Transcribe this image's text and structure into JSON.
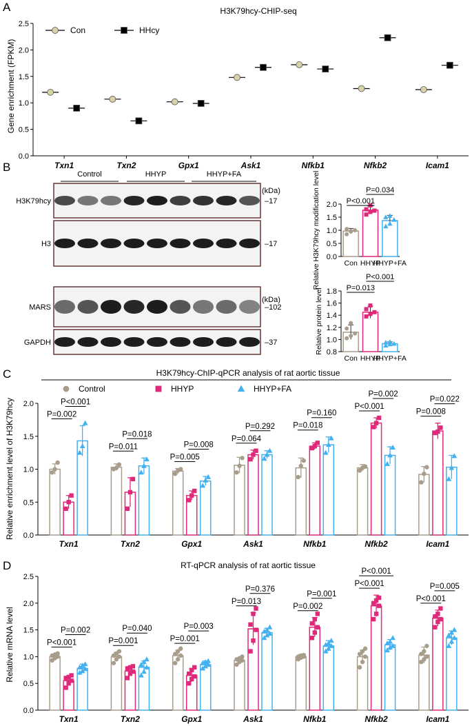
{
  "panels": {
    "A": {
      "letter": "A",
      "chart_data": {
        "type": "scatter",
        "title": "H3K79hcy-CHIP-seq",
        "ylabel": "Gene enrichment (FPKM)",
        "ylim": [
          0,
          2.5
        ],
        "yticks": [
          "0.0",
          "0.5",
          "1.0",
          "1.5",
          "2.0",
          "2.5"
        ],
        "categories": [
          "Txn1",
          "Txn2",
          "Gpx1",
          "Ask1",
          "Nfkb1",
          "Nfkb2",
          "Icam1"
        ],
        "series": [
          {
            "name": "Con",
            "color": "#d8d2a8",
            "marker": "circle",
            "values": [
              1.2,
              1.07,
              1.02,
              1.48,
              1.72,
              1.27,
              1.25
            ]
          },
          {
            "name": "HHcy",
            "color": "#000000",
            "marker": "square",
            "values": [
              0.9,
              0.66,
              0.99,
              1.67,
              1.64,
              2.23,
              1.71
            ]
          }
        ],
        "legend_position": "top-left"
      }
    },
    "B": {
      "letter": "B",
      "blot": {
        "groups": [
          "Control",
          "HHYP",
          "HHYP+FA"
        ],
        "rows": [
          {
            "label": "H3K79hcy",
            "marker": "–17"
          },
          {
            "label": "H3",
            "marker": "–17"
          },
          {
            "label": "MARS",
            "marker": "–102"
          },
          {
            "label": "GAPDH",
            "marker": "–37"
          }
        ],
        "kda": "(kDa)",
        "lane_intensity": [
          [
            0.75,
            0.55,
            0.55,
            0.9,
            0.95,
            0.8,
            0.85,
            0.9,
            0.7
          ],
          [
            0.95,
            0.95,
            0.95,
            0.95,
            0.95,
            0.95,
            0.95,
            0.95,
            0.95
          ],
          [
            0.6,
            0.7,
            0.95,
            0.9,
            0.95,
            0.7,
            0.55,
            0.6,
            0.5
          ],
          [
            0.95,
            0.95,
            0.95,
            0.95,
            0.95,
            0.95,
            0.95,
            0.95,
            0.95
          ]
        ]
      },
      "chart_top": {
        "type": "bar",
        "ylabel": "Relative H3K79hcy modification level",
        "ylim": [
          0,
          2.0
        ],
        "yticks": [
          "0.0",
          "0.5",
          "1.0",
          "1.5",
          "2.0"
        ],
        "categories": [
          "Con",
          "HHYP",
          "HHYP+FA"
        ],
        "values": [
          0.97,
          1.77,
          1.37
        ],
        "errors": [
          0.1,
          0.15,
          0.2
        ],
        "points": [
          [
            0.85,
            0.95,
            1.0,
            1.05,
            0.97
          ],
          [
            1.6,
            1.7,
            1.75,
            1.8,
            1.95
          ],
          [
            1.15,
            1.25,
            1.4,
            1.5,
            1.55
          ]
        ],
        "comparisons": [
          {
            "i": 0,
            "j": 1,
            "label": "P<0.001"
          },
          {
            "i": 1,
            "j": 2,
            "label": "P=0.034"
          }
        ]
      },
      "chart_bottom": {
        "type": "bar",
        "ylabel": "Relative protein level",
        "ylim": [
          0.8,
          1.8
        ],
        "yticks": [
          "0.8",
          "1.0",
          "1.2",
          "1.4",
          "1.6",
          "1.8"
        ],
        "categories": [
          "Con",
          "HHYP",
          "HHYP+FA"
        ],
        "values": [
          1.12,
          1.45,
          0.93
        ],
        "errors": [
          0.12,
          0.1,
          0.03
        ],
        "points": [
          [
            1.02,
            1.06,
            1.1,
            1.18,
            1.27
          ],
          [
            1.38,
            1.42,
            1.45,
            1.5,
            1.56
          ],
          [
            0.9,
            0.92,
            0.93,
            0.95,
            0.96
          ]
        ],
        "comparisons": [
          {
            "i": 0,
            "j": 1,
            "label": "P=0.013"
          },
          {
            "i": 1,
            "j": 2,
            "label": "P<0.001"
          }
        ]
      }
    },
    "C": {
      "letter": "C",
      "chart_data": {
        "type": "bar",
        "title": "H3K79hcy-ChIP-qPCR analysis of rat aortic tissue",
        "ylabel": "Relative  enrichment level of H3K79hcy",
        "ylim": [
          0,
          2.0
        ],
        "yticks": [
          "0.0",
          "0.5",
          "1.0",
          "1.5",
          "2.0"
        ],
        "categories": [
          "Txn1",
          "Txn2",
          "Gpx1",
          "Ask1",
          "Nfkb1",
          "Nfkb2",
          "Icam1"
        ],
        "series": [
          {
            "name": "Control",
            "color": "#a89c8a",
            "marker": "circle",
            "values": [
              1.0,
              1.03,
              0.97,
              1.06,
              1.02,
              1.02,
              0.92
            ],
            "errors": [
              0.08,
              0.05,
              0.04,
              0.12,
              0.15,
              0.05,
              0.12
            ],
            "points": [
              [
                0.95,
                1.0,
                1.1
              ],
              [
                1.0,
                1.02,
                1.07
              ],
              [
                0.93,
                0.98,
                1.0
              ],
              [
                0.95,
                1.05,
                1.17
              ],
              [
                0.88,
                1.05,
                1.13
              ],
              [
                0.98,
                1.02,
                1.04
              ],
              [
                0.8,
                0.93,
                1.03
              ]
            ]
          },
          {
            "name": "HHYP",
            "color": "#e0297a",
            "marker": "square",
            "values": [
              0.5,
              0.65,
              0.6,
              1.22,
              1.35,
              1.7,
              1.58
            ],
            "errors": [
              0.1,
              0.22,
              0.07,
              0.07,
              0.05,
              0.08,
              0.12
            ],
            "points": [
              [
                0.4,
                0.5,
                0.6
              ],
              [
                0.4,
                0.65,
                0.85
              ],
              [
                0.53,
                0.6,
                0.67
              ],
              [
                1.15,
                1.22,
                1.28
              ],
              [
                1.32,
                1.35,
                1.4
              ],
              [
                1.64,
                1.7,
                1.78
              ],
              [
                1.55,
                1.57,
                1.63
              ]
            ]
          },
          {
            "name": "HHYP+FA",
            "color": "#43b0f0",
            "marker": "triangle",
            "values": [
              1.43,
              1.05,
              0.82,
              1.22,
              1.37,
              1.21,
              1.03
            ],
            "errors": [
              0.23,
              0.12,
              0.07,
              0.06,
              0.12,
              0.13,
              0.18
            ],
            "points": [
              [
                1.25,
                1.35,
                1.7
              ],
              [
                0.95,
                1.05,
                1.15
              ],
              [
                0.75,
                0.83,
                0.88
              ],
              [
                1.16,
                1.22,
                1.28
              ],
              [
                1.25,
                1.37,
                1.47
              ],
              [
                1.08,
                1.21,
                1.33
              ],
              [
                0.85,
                1.02,
                1.2
              ]
            ]
          }
        ],
        "comparisons": [
          {
            "cat": 0,
            "i": 0,
            "j": 1,
            "label": "P=0.002"
          },
          {
            "cat": 0,
            "i": 1,
            "j": 2,
            "label": "P<0.001"
          },
          {
            "cat": 1,
            "i": 0,
            "j": 1,
            "label": "P=0.011"
          },
          {
            "cat": 1,
            "i": 1,
            "j": 2,
            "label": "P=0.018"
          },
          {
            "cat": 2,
            "i": 0,
            "j": 1,
            "label": "P=0.005"
          },
          {
            "cat": 2,
            "i": 1,
            "j": 2,
            "label": "P=0.008"
          },
          {
            "cat": 3,
            "i": 0,
            "j": 1,
            "label": "P=0.064"
          },
          {
            "cat": 3,
            "i": 1,
            "j": 2,
            "label": "P=0.292"
          },
          {
            "cat": 4,
            "i": 0,
            "j": 1,
            "label": "P=0.018"
          },
          {
            "cat": 4,
            "i": 1,
            "j": 2,
            "label": "P=0.160"
          },
          {
            "cat": 5,
            "i": 0,
            "j": 1,
            "label": "P<0.001"
          },
          {
            "cat": 5,
            "i": 1,
            "j": 2,
            "label": "P=0.002"
          },
          {
            "cat": 6,
            "i": 0,
            "j": 1,
            "label": "P=0.008"
          },
          {
            "cat": 6,
            "i": 1,
            "j": 2,
            "label": "P=0.022"
          }
        ]
      }
    },
    "D": {
      "letter": "D",
      "chart_data": {
        "type": "bar",
        "title": "RT-qPCR analysis of rat aortic tissue",
        "ylabel": "Relative mRNA level",
        "ylim": [
          0,
          2.5
        ],
        "yticks": [
          "0.0",
          "0.5",
          "1.0",
          "1.5",
          "2.0",
          "2.5"
        ],
        "categories": [
          "Txn1",
          "Txn2",
          "Gpx1",
          "Ask1",
          "Nfkb1",
          "Nfkb2",
          "Icam1"
        ],
        "series": [
          {
            "name": "Control",
            "color": "#a89c8a",
            "marker": "circle",
            "values": [
              1.0,
              1.0,
              1.02,
              0.93,
              1.0,
              1.0,
              1.03
            ],
            "errors": [
              0.05,
              0.08,
              0.1,
              0.05,
              0.04,
              0.12,
              0.15
            ],
            "points": [
              [
                0.93,
                0.97,
                1.0,
                1.02,
                1.04,
                1.06
              ],
              [
                0.88,
                0.95,
                1.0,
                1.02,
                1.06,
                1.1
              ],
              [
                0.88,
                0.95,
                1.02,
                1.05,
                1.1,
                1.15
              ],
              [
                0.85,
                0.9,
                0.93,
                0.95,
                0.97,
                1.0
              ],
              [
                0.95,
                0.98,
                1.0,
                1.0,
                1.02,
                1.03
              ],
              [
                0.8,
                0.9,
                1.0,
                1.05,
                1.1,
                1.15
              ],
              [
                0.9,
                0.95,
                1.0,
                1.05,
                1.1,
                1.2
              ]
            ]
          },
          {
            "name": "HHYP",
            "color": "#e0297a",
            "marker": "square",
            "values": [
              0.55,
              0.73,
              0.65,
              1.52,
              1.55,
              1.95,
              1.72
            ],
            "errors": [
              0.08,
              0.08,
              0.12,
              0.3,
              0.18,
              0.2,
              0.15
            ],
            "points": [
              [
                0.42,
                0.5,
                0.55,
                0.6,
                0.62,
                0.65
              ],
              [
                0.6,
                0.68,
                0.72,
                0.78,
                0.8,
                0.82
              ],
              [
                0.5,
                0.58,
                0.63,
                0.68,
                0.75,
                0.8
              ],
              [
                1.1,
                1.3,
                1.5,
                1.6,
                1.8,
                1.9
              ],
              [
                1.35,
                1.45,
                1.55,
                1.62,
                1.7,
                1.8
              ],
              [
                1.7,
                1.8,
                1.95,
                2.0,
                2.05,
                2.1
              ],
              [
                1.55,
                1.65,
                1.7,
                1.75,
                1.8,
                1.9
              ]
            ]
          },
          {
            "name": "HHYP+FA",
            "color": "#43b0f0",
            "marker": "triangle",
            "values": [
              0.78,
              0.8,
              0.85,
              1.45,
              1.2,
              1.22,
              1.35
            ],
            "errors": [
              0.08,
              0.12,
              0.07,
              0.08,
              0.1,
              0.1,
              0.13
            ],
            "points": [
              [
                0.7,
                0.73,
                0.77,
                0.8,
                0.83,
                0.86
              ],
              [
                0.65,
                0.72,
                0.8,
                0.85,
                0.9,
                0.95
              ],
              [
                0.78,
                0.82,
                0.85,
                0.88,
                0.9,
                0.92
              ],
              [
                1.35,
                1.4,
                1.43,
                1.47,
                1.5,
                1.55
              ],
              [
                1.1,
                1.15,
                1.2,
                1.22,
                1.25,
                1.3
              ],
              [
                1.12,
                1.17,
                1.2,
                1.25,
                1.28,
                1.35
              ],
              [
                1.2,
                1.28,
                1.35,
                1.4,
                1.45,
                1.5
              ]
            ]
          }
        ],
        "comparisons": [
          {
            "cat": 0,
            "i": 0,
            "j": 1,
            "label": "P<0.001"
          },
          {
            "cat": 0,
            "i": 1,
            "j": 2,
            "label": "P=0.002"
          },
          {
            "cat": 1,
            "i": 0,
            "j": 1,
            "label": "P=0.001"
          },
          {
            "cat": 1,
            "i": 1,
            "j": 2,
            "label": "P=0.040"
          },
          {
            "cat": 2,
            "i": 0,
            "j": 1,
            "label": "P=0.001"
          },
          {
            "cat": 2,
            "i": 1,
            "j": 2,
            "label": "P=0.003"
          },
          {
            "cat": 3,
            "i": 0,
            "j": 1,
            "label": "P=0.013"
          },
          {
            "cat": 3,
            "i": 1,
            "j": 2,
            "label": "P=0.376"
          },
          {
            "cat": 4,
            "i": 0,
            "j": 1,
            "label": "P=0.002"
          },
          {
            "cat": 4,
            "i": 1,
            "j": 2,
            "label": "P=0.001"
          },
          {
            "cat": 5,
            "i": 0,
            "j": 1,
            "label": "P<0.001"
          },
          {
            "cat": 5,
            "i": 0,
            "j": 2,
            "label": "P<0.001"
          },
          {
            "cat": 6,
            "i": 0,
            "j": 1,
            "label": "P<0.001"
          },
          {
            "cat": 6,
            "i": 1,
            "j": 2,
            "label": "P=0.005"
          }
        ]
      }
    }
  }
}
